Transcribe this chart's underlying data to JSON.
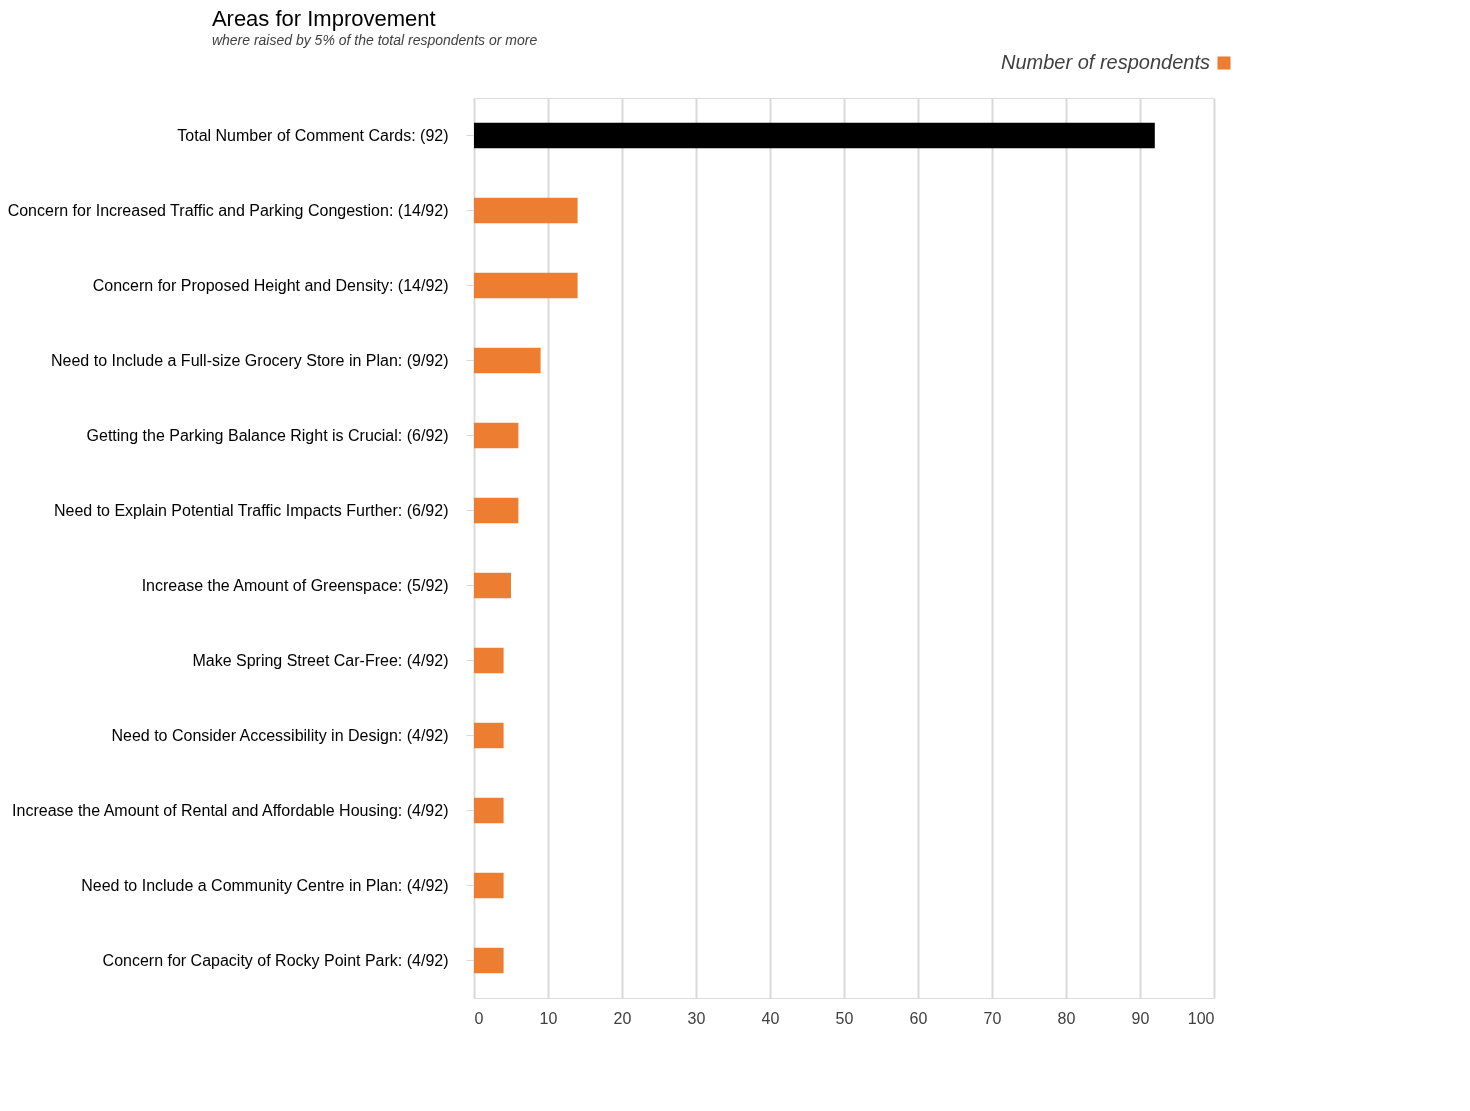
{
  "chart_data": {
    "type": "bar",
    "orientation": "horizontal",
    "title": "Areas for Improvement",
    "subtitle": "where raised by 5% of the total respondents or more",
    "categories": [
      "Total Number of Comment Cards: (92)",
      "Concern for Increased Traffic and Parking Congestion: (14/92)",
      "Concern for Proposed Height and Density: (14/92)",
      "Need to Include a Full-size Grocery Store in Plan: (9/92)",
      "Getting the Parking Balance Right is Crucial: (6/92)",
      "Need to Explain Potential Traffic Impacts Further: (6/92)",
      "Increase the Amount of Greenspace: (5/92)",
      "Make Spring Street Car-Free: (4/92)",
      "Need to Consider Accessibility in Design: (4/92)",
      "Increase the Amount of Rental and Affordable Housing: (4/92)",
      "Need to Include a Community Centre in Plan: (4/92)",
      "Concern for Capacity of Rocky Point Park: (4/92)"
    ],
    "series": [
      {
        "name": "Number of respondents",
        "color": "#ed7d31",
        "values": [
          92,
          14,
          14,
          9,
          6,
          6,
          5,
          4,
          4,
          4,
          4,
          4
        ],
        "colors": [
          "#000000",
          "#ed7d31",
          "#ed7d31",
          "#ed7d31",
          "#ed7d31",
          "#ed7d31",
          "#ed7d31",
          "#ed7d31",
          "#ed7d31",
          "#ed7d31",
          "#ed7d31",
          "#ed7d31"
        ]
      }
    ],
    "xlim": [
      0,
      100
    ],
    "xticks": [
      0,
      10,
      20,
      30,
      40,
      50,
      60,
      70,
      80,
      90,
      100
    ],
    "grid": "x",
    "legend": "top right"
  }
}
